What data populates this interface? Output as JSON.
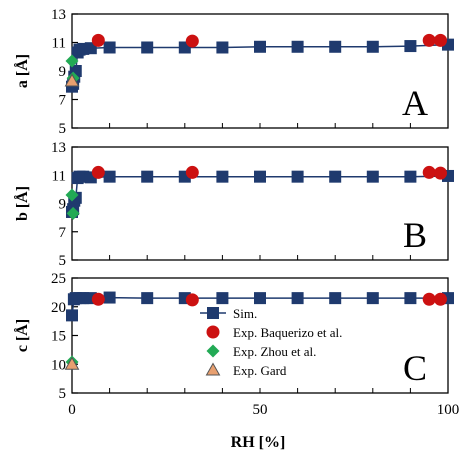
{
  "chart_data": [
    {
      "panel": "A",
      "type": "scatter",
      "ylabel": "a [Å]",
      "ylim": [
        5,
        13
      ],
      "yticks": [
        "5",
        "7",
        "9",
        "11",
        "13"
      ],
      "xlim": [
        0,
        100
      ],
      "series": [
        {
          "name": "Sim.",
          "marker": "square-line",
          "color": "#1f3a6e",
          "points": [
            [
              0,
              7.9
            ],
            [
              0.3,
              8.1
            ],
            [
              0.6,
              8.6
            ],
            [
              1,
              9.0
            ],
            [
              1.5,
              10.3
            ],
            [
              2,
              10.5
            ],
            [
              3,
              10.55
            ],
            [
              5,
              10.6
            ],
            [
              10,
              10.65
            ],
            [
              20,
              10.65
            ],
            [
              30,
              10.65
            ],
            [
              40,
              10.65
            ],
            [
              50,
              10.7
            ],
            [
              60,
              10.7
            ],
            [
              70,
              10.7
            ],
            [
              80,
              10.7
            ],
            [
              90,
              10.75
            ],
            [
              100,
              10.85
            ]
          ]
        },
        {
          "name": "Exp. Baquerizo et al.",
          "marker": "circle",
          "color": "#cc1111",
          "points": [
            [
              7,
              11.15
            ],
            [
              32,
              11.1
            ],
            [
              95,
              11.15
            ],
            [
              98,
              11.15
            ]
          ]
        },
        {
          "name": "Exp. Zhou et al.",
          "marker": "diamond",
          "color": "#22aa55",
          "points": [
            [
              0,
              9.7
            ],
            [
              0.3,
              8.5
            ]
          ]
        },
        {
          "name": "Exp. Gard",
          "marker": "triangle",
          "color": "#e8a070",
          "points": [
            [
              0,
              8.3
            ]
          ]
        }
      ],
      "annotation": "A"
    },
    {
      "panel": "B",
      "type": "scatter",
      "ylabel": "b [Å]",
      "ylim": [
        5,
        13
      ],
      "yticks": [
        "5",
        "7",
        "9",
        "11",
        "13"
      ],
      "xlim": [
        0,
        100
      ],
      "series": [
        {
          "name": "Sim.",
          "marker": "square-line",
          "color": "#1f3a6e",
          "points": [
            [
              0,
              8.4
            ],
            [
              0.3,
              8.6
            ],
            [
              0.6,
              9.2
            ],
            [
              1,
              9.4
            ],
            [
              1.5,
              10.8
            ],
            [
              2,
              10.9
            ],
            [
              3,
              10.9
            ],
            [
              5,
              10.85
            ],
            [
              10,
              10.9
            ],
            [
              20,
              10.9
            ],
            [
              30,
              10.9
            ],
            [
              40,
              10.9
            ],
            [
              50,
              10.9
            ],
            [
              60,
              10.9
            ],
            [
              70,
              10.9
            ],
            [
              80,
              10.9
            ],
            [
              90,
              10.9
            ],
            [
              100,
              10.95
            ]
          ]
        },
        {
          "name": "Exp. Baquerizo et al.",
          "marker": "circle",
          "color": "#cc1111",
          "points": [
            [
              7,
              11.2
            ],
            [
              32,
              11.2
            ],
            [
              95,
              11.2
            ],
            [
              98,
              11.15
            ]
          ]
        },
        {
          "name": "Exp. Zhou et al.",
          "marker": "diamond",
          "color": "#22aa55",
          "points": [
            [
              0,
              9.6
            ],
            [
              0.3,
              8.3
            ]
          ]
        },
        {
          "name": "Exp. Gard",
          "marker": "triangle",
          "color": "#e8a070",
          "points": []
        }
      ],
      "annotation": "B"
    },
    {
      "panel": "C",
      "type": "scatter",
      "ylabel": "c [Å]",
      "ylim": [
        5,
        25
      ],
      "yticks": [
        "5",
        "10",
        "15",
        "20",
        "25"
      ],
      "xlim": [
        0,
        100
      ],
      "xticks": [
        "0",
        "50",
        "100"
      ],
      "xlabel": "RH [%]",
      "series": [
        {
          "name": "Sim.",
          "marker": "square-line",
          "color": "#1f3a6e",
          "points": [
            [
              0,
              18.5
            ],
            [
              0.5,
              21.3
            ],
            [
              1,
              21.5
            ],
            [
              2,
              21.5
            ],
            [
              3,
              21.5
            ],
            [
              5,
              21.5
            ],
            [
              10,
              21.6
            ],
            [
              20,
              21.5
            ],
            [
              30,
              21.5
            ],
            [
              40,
              21.5
            ],
            [
              50,
              21.5
            ],
            [
              60,
              21.5
            ],
            [
              70,
              21.5
            ],
            [
              80,
              21.5
            ],
            [
              90,
              21.5
            ],
            [
              100,
              21.5
            ]
          ]
        },
        {
          "name": "Exp. Baquerizo et al.",
          "marker": "circle",
          "color": "#cc1111",
          "points": [
            [
              7,
              21.3
            ],
            [
              32,
              21.2
            ],
            [
              95,
              21.3
            ],
            [
              98,
              21.3
            ]
          ]
        },
        {
          "name": "Exp. Zhou et al.",
          "marker": "diamond",
          "color": "#22aa55",
          "points": [
            [
              0,
              10.4
            ]
          ]
        },
        {
          "name": "Exp. Gard",
          "marker": "triangle",
          "color": "#e8a070",
          "points": [
            [
              0,
              10.0
            ]
          ]
        }
      ],
      "legend": {
        "placement": "right",
        "entries": [
          "Sim.",
          "Exp. Baquerizo et al.",
          "Exp. Zhou et al.",
          "Exp. Gard"
        ]
      },
      "annotation": "C"
    }
  ]
}
